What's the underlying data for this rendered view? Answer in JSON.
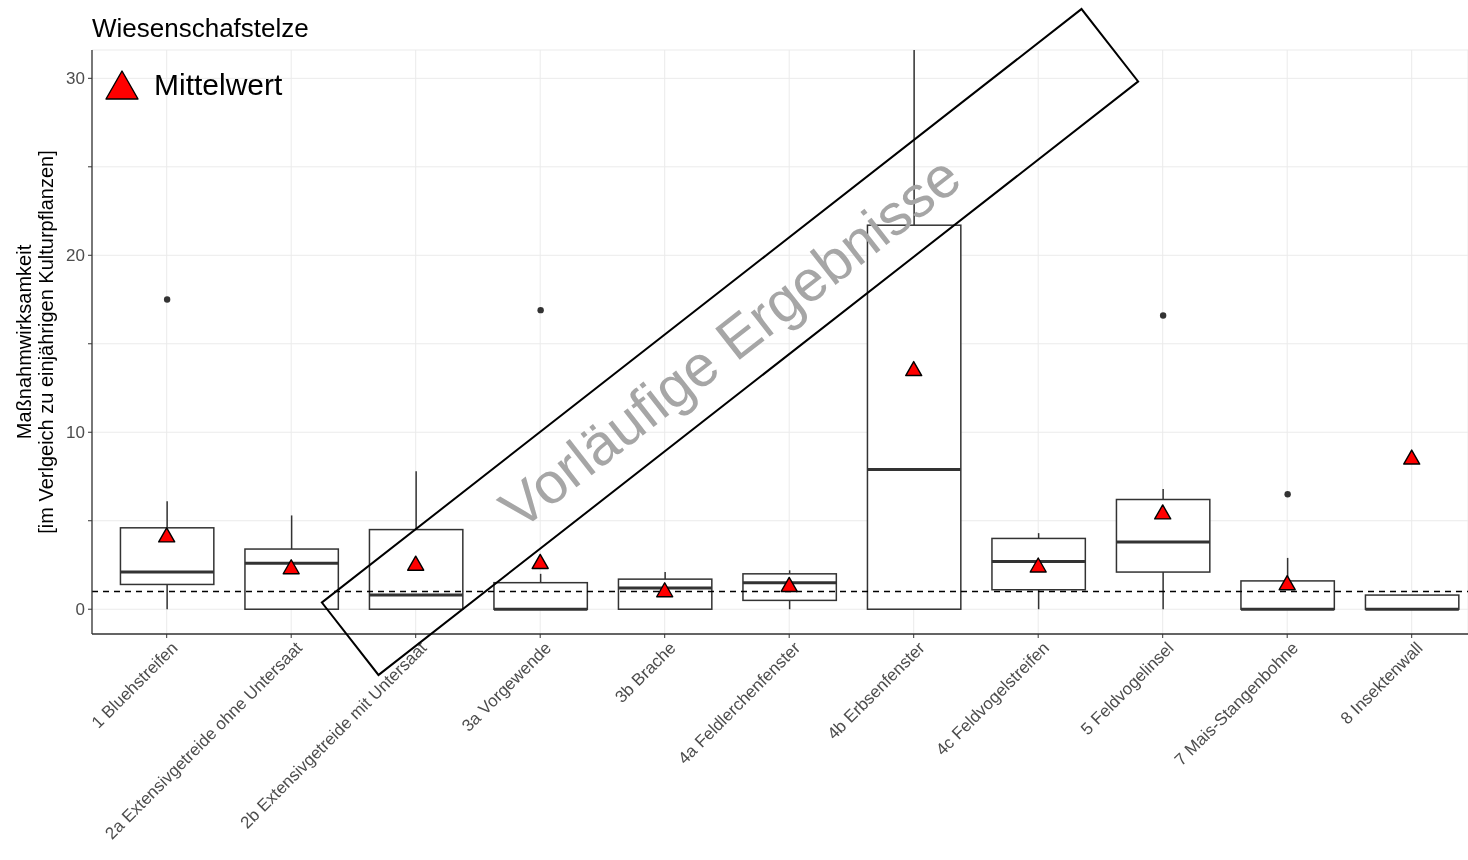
{
  "chart_data": {
    "type": "box",
    "title": "Wiesenschafstelze",
    "ylabel": "Maßnahmwirksamkeit\n[im Verlgeich zu einjährigen Kulturpflanzen]",
    "categories": [
      "1 Bluehstreifen",
      "2a Extensivgetreide ohne Untersaat",
      "2b Extensivgetreide mit Untersaat",
      "3a Vorgewende",
      "3b Brache",
      "4a Feldlerchenfenster",
      "4b Erbsenfenster",
      "4c Feldvogelstreifen",
      "5 Feldvogelinsel",
      "7 Mais-Stangenbohne",
      "8 Insektenwall"
    ],
    "series": [
      {
        "type": "box",
        "color": "#333333",
        "boxes": [
          {
            "low": 0,
            "q1": 1.4,
            "median": 2.1,
            "q3": 4.6,
            "high": 6.1,
            "outliers": [
              17.5
            ]
          },
          {
            "low": 0,
            "q1": 0,
            "median": 2.6,
            "q3": 3.4,
            "high": 5.3
          },
          {
            "low": 0,
            "q1": 0,
            "median": 0.8,
            "q3": 4.5,
            "high": 7.8
          },
          {
            "low": 0,
            "q1": 0,
            "median": 0,
            "q3": 1.5,
            "high": 2,
            "outliers": [
              16.9
            ]
          },
          {
            "low": 0,
            "q1": 0,
            "median": 1.2,
            "q3": 1.7,
            "high": 2.1
          },
          {
            "low": 0,
            "q1": 0.5,
            "median": 1.5,
            "q3": 2,
            "high": 2.2
          },
          {
            "low": 0,
            "q1": 0,
            "median": 7.9,
            "q3": 21.7,
            "high": 31.6
          },
          {
            "low": 0,
            "q1": 1.1,
            "median": 2.7,
            "q3": 4,
            "high": 4.3
          },
          {
            "low": 0,
            "q1": 2.1,
            "median": 3.8,
            "q3": 6.2,
            "high": 6.8,
            "outliers": [
              16.6
            ]
          },
          {
            "low": 0,
            "q1": 0,
            "median": 0,
            "q3": 1.6,
            "high": 2.9,
            "outliers": [
              6.5
            ]
          },
          {
            "low": 0,
            "q1": 0,
            "median": 0,
            "q3": 0.8,
            "high": 0.8
          }
        ]
      },
      {
        "type": "scatter",
        "name": "Mittelwert",
        "color": "#ff0000",
        "marker": "triangle",
        "x": [
          "1 Bluehstreifen",
          "2a Extensivgetreide ohne Untersaat",
          "2b Extensivgetreide mit Untersaat",
          "3a Vorgewende",
          "3b Brache",
          "4a Feldlerchenfenster",
          "4b Erbsenfenster",
          "4c Feldvogelstreifen",
          "5 Feldvogelinsel",
          "7 Mais-Stangenbohne",
          "8 Insektenwall"
        ],
        "values": [
          4.2,
          2.4,
          2.6,
          2.7,
          1.1,
          1.4,
          13.6,
          2.5,
          5.5,
          1.5,
          8.6
        ]
      }
    ],
    "ylim": [
      -1.4,
      31.6
    ],
    "yticks": [
      0,
      {
        "value": 5,
        "label": null
      },
      10,
      {
        "value": 15,
        "label": null
      },
      20,
      {
        "value": 25,
        "label": null
      },
      30
    ],
    "grid": true,
    "legend": "top left",
    "ref_lines": [
      {
        "axis": "y",
        "value": 1,
        "color": "#000000",
        "line_style": "dashed"
      }
    ],
    "annotations": [
      "Vorläufige Ergebnisse"
    ]
  }
}
